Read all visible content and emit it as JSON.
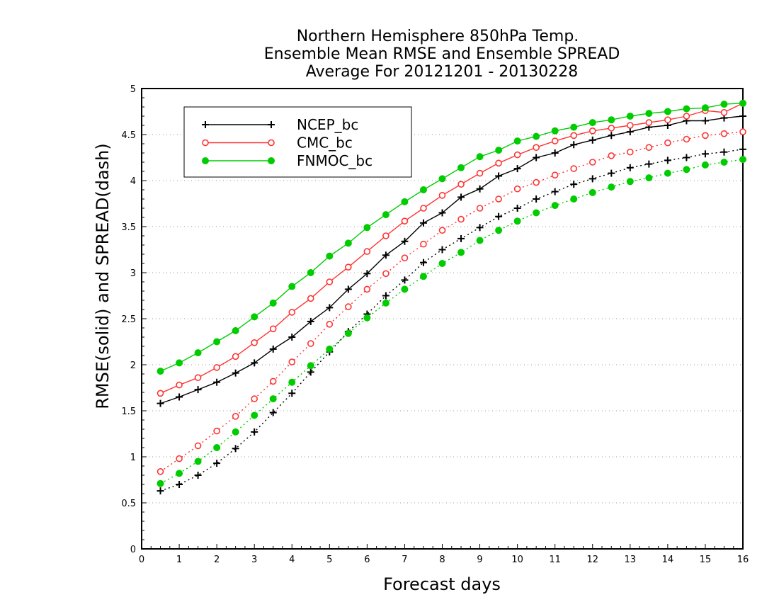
{
  "chart_data": {
    "type": "line",
    "title_lines": [
      "Northern Hemisphere 850hPa Temp.",
      "Ensemble Mean RMSE and Ensemble SPREAD",
      "Average For 20121201 - 20130228"
    ],
    "xlabel": "Forecast days",
    "ylabel": "RMSE(solid) and SPREAD(dash)",
    "xlim": [
      0,
      16
    ],
    "ylim": [
      0,
      5
    ],
    "xticks": [
      0,
      1,
      2,
      3,
      4,
      5,
      6,
      7,
      8,
      9,
      10,
      11,
      12,
      13,
      14,
      15,
      16
    ],
    "yticks": [
      0,
      0.5,
      1,
      1.5,
      2,
      2.5,
      3,
      3.5,
      4,
      4.5,
      5
    ],
    "grid": "horizontal dotted",
    "legend_position": "top-left",
    "x": [
      0.5,
      1,
      1.5,
      2,
      2.5,
      3,
      3.5,
      4,
      4.5,
      5,
      5.5,
      6,
      6.5,
      7,
      7.5,
      8,
      8.5,
      9,
      9.5,
      10,
      10.5,
      11,
      11.5,
      12,
      12.5,
      13,
      13.5,
      14,
      14.5,
      15,
      15.5,
      16
    ],
    "series": [
      {
        "name": "NCEP_bc",
        "color": "#000000",
        "marker": "plus",
        "rmse": [
          1.58,
          1.65,
          1.73,
          1.81,
          1.91,
          2.02,
          2.17,
          2.3,
          2.47,
          2.62,
          2.82,
          2.99,
          3.19,
          3.34,
          3.54,
          3.65,
          3.82,
          3.91,
          4.05,
          4.13,
          4.25,
          4.3,
          4.39,
          4.44,
          4.49,
          4.53,
          4.58,
          4.6,
          4.65,
          4.65,
          4.68,
          4.7
        ],
        "spread": [
          0.63,
          0.7,
          0.8,
          0.93,
          1.09,
          1.27,
          1.48,
          1.69,
          1.92,
          2.14,
          2.36,
          2.55,
          2.75,
          2.92,
          3.11,
          3.25,
          3.37,
          3.49,
          3.61,
          3.7,
          3.8,
          3.88,
          3.96,
          4.02,
          4.08,
          4.14,
          4.18,
          4.22,
          4.25,
          4.29,
          4.31,
          4.34
        ]
      },
      {
        "name": "CMC_bc",
        "color": "#ff3333",
        "marker": "open-circle",
        "rmse": [
          1.69,
          1.78,
          1.86,
          1.97,
          2.09,
          2.24,
          2.39,
          2.57,
          2.72,
          2.9,
          3.06,
          3.23,
          3.4,
          3.56,
          3.7,
          3.84,
          3.96,
          4.08,
          4.19,
          4.28,
          4.36,
          4.43,
          4.49,
          4.54,
          4.57,
          4.6,
          4.63,
          4.66,
          4.7,
          4.76,
          4.74,
          4.84
        ],
        "spread": [
          0.84,
          0.98,
          1.12,
          1.28,
          1.44,
          1.63,
          1.82,
          2.03,
          2.23,
          2.44,
          2.63,
          2.82,
          2.99,
          3.16,
          3.31,
          3.46,
          3.58,
          3.7,
          3.8,
          3.91,
          3.98,
          4.06,
          4.13,
          4.2,
          4.27,
          4.31,
          4.36,
          4.41,
          4.45,
          4.49,
          4.51,
          4.53
        ]
      },
      {
        "name": "FNMOC_bc",
        "color": "#00cc00",
        "marker": "filled-circle",
        "rmse": [
          1.93,
          2.02,
          2.13,
          2.25,
          2.37,
          2.52,
          2.67,
          2.85,
          3.0,
          3.18,
          3.32,
          3.49,
          3.63,
          3.77,
          3.9,
          4.02,
          4.14,
          4.26,
          4.33,
          4.43,
          4.48,
          4.54,
          4.58,
          4.63,
          4.66,
          4.7,
          4.73,
          4.75,
          4.78,
          4.79,
          4.83,
          4.84
        ],
        "spread": [
          0.71,
          0.82,
          0.95,
          1.1,
          1.27,
          1.45,
          1.63,
          1.81,
          1.99,
          2.17,
          2.34,
          2.51,
          2.67,
          2.82,
          2.96,
          3.1,
          3.22,
          3.35,
          3.46,
          3.56,
          3.65,
          3.73,
          3.8,
          3.87,
          3.93,
          3.99,
          4.03,
          4.08,
          4.12,
          4.17,
          4.2,
          4.23
        ]
      }
    ]
  }
}
